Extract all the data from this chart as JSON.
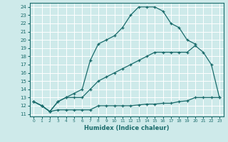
{
  "xlabel": "Humidex (Indice chaleur)",
  "xlim": [
    -0.5,
    23.5
  ],
  "ylim": [
    10.7,
    24.5
  ],
  "xticks": [
    0,
    1,
    2,
    3,
    4,
    5,
    6,
    7,
    8,
    9,
    10,
    11,
    12,
    13,
    14,
    15,
    16,
    17,
    18,
    19,
    20,
    21,
    22,
    23
  ],
  "yticks": [
    11,
    12,
    13,
    14,
    15,
    16,
    17,
    18,
    19,
    20,
    21,
    22,
    23,
    24
  ],
  "line_color": "#1a6b6b",
  "bg_color": "#ceeaea",
  "grid_color": "#ffffff",
  "line1_x": [
    0,
    1,
    2,
    3,
    4,
    5,
    6,
    7,
    8,
    9,
    10,
    11,
    12,
    13,
    14,
    15,
    16,
    17,
    18,
    19,
    20,
    21,
    22,
    23
  ],
  "line1_y": [
    12.5,
    12.0,
    11.3,
    11.5,
    11.5,
    11.5,
    11.5,
    11.5,
    12.0,
    12.0,
    12.0,
    12.0,
    12.0,
    12.1,
    12.2,
    12.2,
    12.3,
    12.3,
    12.5,
    12.6,
    13.0,
    13.0,
    13.0,
    13.0
  ],
  "line2_x": [
    0,
    1,
    2,
    3,
    4,
    5,
    6,
    7,
    8,
    9,
    10,
    11,
    12,
    13,
    14,
    15,
    16,
    17,
    18,
    19,
    20,
    21,
    22,
    23
  ],
  "line2_y": [
    12.5,
    12.0,
    11.3,
    12.5,
    13.0,
    13.0,
    13.0,
    14.0,
    15.0,
    15.5,
    16.0,
    16.5,
    17.0,
    17.5,
    18.0,
    18.5,
    18.5,
    18.5,
    18.5,
    18.5,
    19.3,
    18.5,
    17.0,
    13.0
  ],
  "line3_x": [
    0,
    1,
    2,
    3,
    4,
    5,
    6,
    7,
    8,
    9,
    10,
    11,
    12,
    13,
    14,
    15,
    16,
    17,
    18,
    19,
    20
  ],
  "line3_y": [
    12.5,
    12.0,
    11.3,
    12.5,
    13.0,
    13.5,
    14.0,
    17.5,
    19.5,
    20.0,
    20.5,
    21.5,
    23.0,
    24.0,
    24.0,
    24.0,
    23.5,
    22.0,
    21.5,
    20.0,
    19.5
  ]
}
